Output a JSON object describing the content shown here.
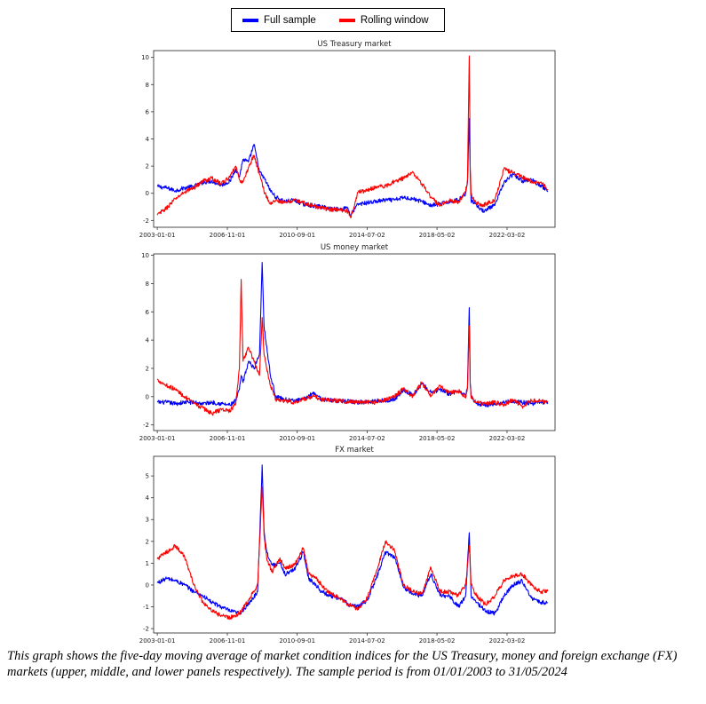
{
  "legend": {
    "full_label": "Full sample",
    "rolling_label": "Rolling window",
    "full_color": "#0000ff",
    "rolling_color": "#ff0000"
  },
  "chart_data": [
    {
      "type": "line",
      "title": "US Treasury market",
      "xlabel": "",
      "ylabel": "",
      "xlim": [
        2002.8,
        2024.8
      ],
      "ylim": [
        -2.5,
        10.5
      ],
      "yticks": [
        -2,
        0,
        2,
        4,
        6,
        8,
        10
      ],
      "xticks": [
        {
          "x": 2003.0,
          "label": "2003-01-01"
        },
        {
          "x": 2006.84,
          "label": "2006-11-01"
        },
        {
          "x": 2010.67,
          "label": "2010-09-01"
        },
        {
          "x": 2014.5,
          "label": "2014-07-02"
        },
        {
          "x": 2018.33,
          "label": "2018-05-02"
        },
        {
          "x": 2022.17,
          "label": "2022-03-02"
        }
      ],
      "x": [
        2003.0,
        2003.5,
        2004.0,
        2004.5,
        2005.0,
        2005.5,
        2006.0,
        2006.5,
        2007.0,
        2007.3,
        2007.5,
        2007.7,
        2008.0,
        2008.3,
        2008.6,
        2008.9,
        2009.2,
        2009.5,
        2010.0,
        2010.5,
        2011.0,
        2011.5,
        2012.0,
        2012.5,
        2013.0,
        2013.4,
        2013.6,
        2014.0,
        2014.5,
        2015.0,
        2015.5,
        2016.0,
        2016.5,
        2017.0,
        2017.5,
        2018.0,
        2018.5,
        2019.0,
        2019.5,
        2019.9,
        2020.0,
        2020.1,
        2020.15,
        2020.2,
        2020.4,
        2020.8,
        2021.0,
        2021.5,
        2022.0,
        2022.5,
        2023.0,
        2023.5,
        2024.0,
        2024.4
      ],
      "series": [
        {
          "name": "Full sample",
          "values": [
            0.5,
            0.4,
            0.2,
            0.4,
            0.5,
            0.8,
            0.9,
            0.6,
            0.9,
            1.8,
            1.2,
            2.5,
            2.3,
            3.6,
            1.6,
            1.0,
            0.2,
            -0.3,
            -0.6,
            -0.5,
            -0.8,
            -0.9,
            -1.0,
            -1.1,
            -1.2,
            -1.0,
            -1.6,
            -0.8,
            -0.7,
            -0.6,
            -0.5,
            -0.5,
            -0.3,
            -0.4,
            -0.6,
            -0.9,
            -0.8,
            -0.6,
            -0.5,
            0.0,
            0.8,
            5.5,
            1.5,
            -0.6,
            -0.7,
            -1.3,
            -1.2,
            -0.9,
            0.8,
            1.4,
            0.9,
            1.0,
            0.6,
            0.2
          ]
        },
        {
          "name": "Rolling window",
          "values": [
            -1.6,
            -1.1,
            -0.4,
            0.1,
            0.4,
            0.9,
            1.1,
            0.7,
            1.2,
            2.0,
            1.0,
            0.8,
            1.9,
            2.8,
            1.4,
            0.0,
            -0.8,
            -0.5,
            -0.7,
            -0.5,
            -0.7,
            -0.9,
            -1.1,
            -1.2,
            -1.2,
            -1.3,
            -1.8,
            0.1,
            0.2,
            0.5,
            0.5,
            0.9,
            1.1,
            1.6,
            0.7,
            -0.3,
            -0.9,
            -0.5,
            -0.7,
            0.1,
            1.0,
            10.1,
            2.0,
            -0.1,
            -0.6,
            -0.9,
            -0.8,
            -0.5,
            1.8,
            1.5,
            1.2,
            0.9,
            0.8,
            0.3
          ]
        }
      ]
    },
    {
      "type": "line",
      "title": "US money market",
      "xlabel": "",
      "ylabel": "",
      "xlim": [
        2002.8,
        2024.8
      ],
      "ylim": [
        -2.4,
        10.1
      ],
      "yticks": [
        -2,
        0,
        2,
        4,
        6,
        8,
        10
      ],
      "xticks": [
        {
          "x": 2003.0,
          "label": "2003-01-01"
        },
        {
          "x": 2006.84,
          "label": "2006-11-01"
        },
        {
          "x": 2010.67,
          "label": "2010-09-01"
        },
        {
          "x": 2014.5,
          "label": "2014-07-02"
        },
        {
          "x": 2018.33,
          "label": "2018-05-02"
        },
        {
          "x": 2022.17,
          "label": "2022-03-02"
        }
      ],
      "x": [
        2003.0,
        2003.5,
        2004.0,
        2004.5,
        2005.0,
        2005.5,
        2006.0,
        2006.5,
        2007.0,
        2007.3,
        2007.5,
        2007.6,
        2007.7,
        2008.0,
        2008.3,
        2008.6,
        2008.75,
        2008.85,
        2009.2,
        2009.5,
        2010.0,
        2010.5,
        2011.0,
        2011.6,
        2012.0,
        2013.0,
        2014.0,
        2015.0,
        2016.0,
        2016.5,
        2017.0,
        2017.5,
        2018.0,
        2018.5,
        2019.0,
        2019.6,
        2019.9,
        2020.0,
        2020.1,
        2020.15,
        2020.2,
        2020.5,
        2021.0,
        2021.5,
        2022.0,
        2022.5,
        2023.0,
        2023.5,
        2024.0,
        2024.4
      ],
      "series": [
        {
          "name": "Full sample",
          "values": [
            -0.4,
            -0.4,
            -0.5,
            -0.4,
            -0.4,
            -0.5,
            -0.4,
            -0.5,
            -0.6,
            -0.3,
            0.5,
            1.5,
            1.0,
            2.5,
            2.0,
            3.0,
            9.5,
            5.0,
            1.5,
            0.0,
            -0.2,
            -0.3,
            -0.2,
            0.3,
            -0.2,
            -0.3,
            -0.4,
            -0.3,
            -0.2,
            0.5,
            0.1,
            0.9,
            0.3,
            0.5,
            0.2,
            0.4,
            0.0,
            0.7,
            6.3,
            1.0,
            0.0,
            -0.5,
            -0.6,
            -0.5,
            -0.4,
            -0.3,
            -0.4,
            -0.5,
            -0.4,
            -0.4
          ]
        },
        {
          "name": "Rolling window",
          "values": [
            1.2,
            0.8,
            0.5,
            0.0,
            -0.5,
            -0.8,
            -1.2,
            -0.9,
            -1.0,
            -0.5,
            2.0,
            8.3,
            2.5,
            3.5,
            2.5,
            1.5,
            5.6,
            3.0,
            0.8,
            -0.2,
            -0.3,
            -0.4,
            -0.2,
            0.0,
            -0.2,
            -0.3,
            -0.4,
            -0.4,
            0.0,
            0.6,
            0.0,
            1.0,
            0.0,
            0.8,
            0.3,
            0.4,
            -0.1,
            0.6,
            5.0,
            0.8,
            -0.1,
            -0.4,
            -0.5,
            -0.4,
            -0.6,
            -0.2,
            -0.7,
            -0.3,
            -0.3,
            -0.4
          ]
        }
      ]
    },
    {
      "type": "line",
      "title": "FX market",
      "xlabel": "",
      "ylabel": "",
      "xlim": [
        2002.8,
        2024.8
      ],
      "ylim": [
        -2.2,
        5.9
      ],
      "yticks": [
        -2,
        -1,
        0,
        1,
        2,
        3,
        4,
        5
      ],
      "xticks": [
        {
          "x": 2003.0,
          "label": "2003-01-01"
        },
        {
          "x": 2006.84,
          "label": "2006-11-01"
        },
        {
          "x": 2010.67,
          "label": "2010-09-01"
        },
        {
          "x": 2014.5,
          "label": "2014-07-02"
        },
        {
          "x": 2018.33,
          "label": "2018-05-02"
        },
        {
          "x": 2022.17,
          "label": "2022-03-02"
        }
      ],
      "x": [
        2003.0,
        2003.5,
        2004.0,
        2004.5,
        2005.0,
        2005.5,
        2006.0,
        2006.5,
        2007.0,
        2007.5,
        2008.0,
        2008.5,
        2008.75,
        2008.85,
        2009.0,
        2009.3,
        2009.7,
        2010.0,
        2010.5,
        2011.0,
        2011.3,
        2011.7,
        2012.0,
        2012.5,
        2013.0,
        2013.5,
        2014.0,
        2014.5,
        2015.0,
        2015.5,
        2016.0,
        2016.5,
        2017.0,
        2017.5,
        2018.0,
        2018.5,
        2019.0,
        2019.5,
        2019.9,
        2020.1,
        2020.2,
        2020.5,
        2021.0,
        2021.5,
        2022.0,
        2022.5,
        2023.0,
        2023.5,
        2024.0,
        2024.4
      ],
      "series": [
        {
          "name": "Full sample",
          "values": [
            0.1,
            0.3,
            0.2,
            0.0,
            -0.3,
            -0.5,
            -0.8,
            -1.0,
            -1.2,
            -1.3,
            -0.9,
            -0.3,
            5.5,
            2.5,
            1.5,
            0.9,
            1.0,
            0.5,
            0.7,
            1.5,
            0.3,
            0.0,
            -0.3,
            -0.5,
            -0.6,
            -0.9,
            -1.0,
            -0.7,
            0.3,
            1.5,
            1.3,
            -0.1,
            -0.4,
            -0.5,
            0.5,
            -0.5,
            -0.5,
            -1.0,
            -0.5,
            2.4,
            -0.5,
            -0.8,
            -1.2,
            -1.3,
            -0.5,
            0.0,
            0.2,
            -0.6,
            -0.8,
            -0.8
          ]
        },
        {
          "name": "Rolling window",
          "values": [
            1.2,
            1.5,
            1.8,
            1.3,
            0.0,
            -0.8,
            -1.2,
            -1.4,
            -1.5,
            -1.3,
            -0.7,
            0.0,
            4.5,
            2.3,
            1.2,
            0.6,
            1.2,
            0.8,
            0.9,
            1.7,
            0.5,
            0.3,
            0.0,
            -0.4,
            -0.6,
            -0.9,
            -1.1,
            -0.6,
            0.6,
            2.0,
            1.6,
            0.0,
            -0.3,
            -0.4,
            0.8,
            -0.3,
            -0.3,
            -0.5,
            0.0,
            1.8,
            0.0,
            -0.5,
            -0.9,
            -0.5,
            0.2,
            0.4,
            0.5,
            0.0,
            -0.3,
            -0.3
          ]
        }
      ]
    }
  ],
  "caption": "This graph shows the five-day moving average of market condition indices for the US Treasury, money and foreign exchange (FX) markets (upper, middle, and lower panels respectively). The sample period is from 01/01/2003 to 31/05/2024"
}
